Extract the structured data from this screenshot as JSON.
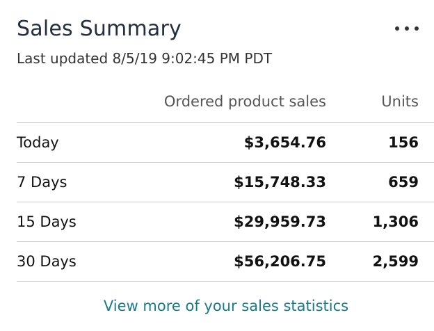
{
  "card": {
    "title": "Sales Summary",
    "more_icon": "more-horizontal-icon",
    "last_updated": "Last updated 8/5/19 9:02:45 PM PDT"
  },
  "table": {
    "headers": {
      "period": "",
      "sales": "Ordered product sales",
      "units": "Units"
    },
    "rows": [
      {
        "period": "Today",
        "sales": "$3,654.76",
        "units": "156"
      },
      {
        "period": "7 Days",
        "sales": "$15,748.33",
        "units": "659"
      },
      {
        "period": "15 Days",
        "sales": "$29,959.73",
        "units": "1,306"
      },
      {
        "period": "30 Days",
        "sales": "$56,206.75",
        "units": "2,599"
      }
    ]
  },
  "footer": {
    "link_label": "View more of your sales statistics"
  },
  "colors": {
    "title": "#232f3e",
    "link": "#1a7a88",
    "divider": "#c8c8c8"
  }
}
